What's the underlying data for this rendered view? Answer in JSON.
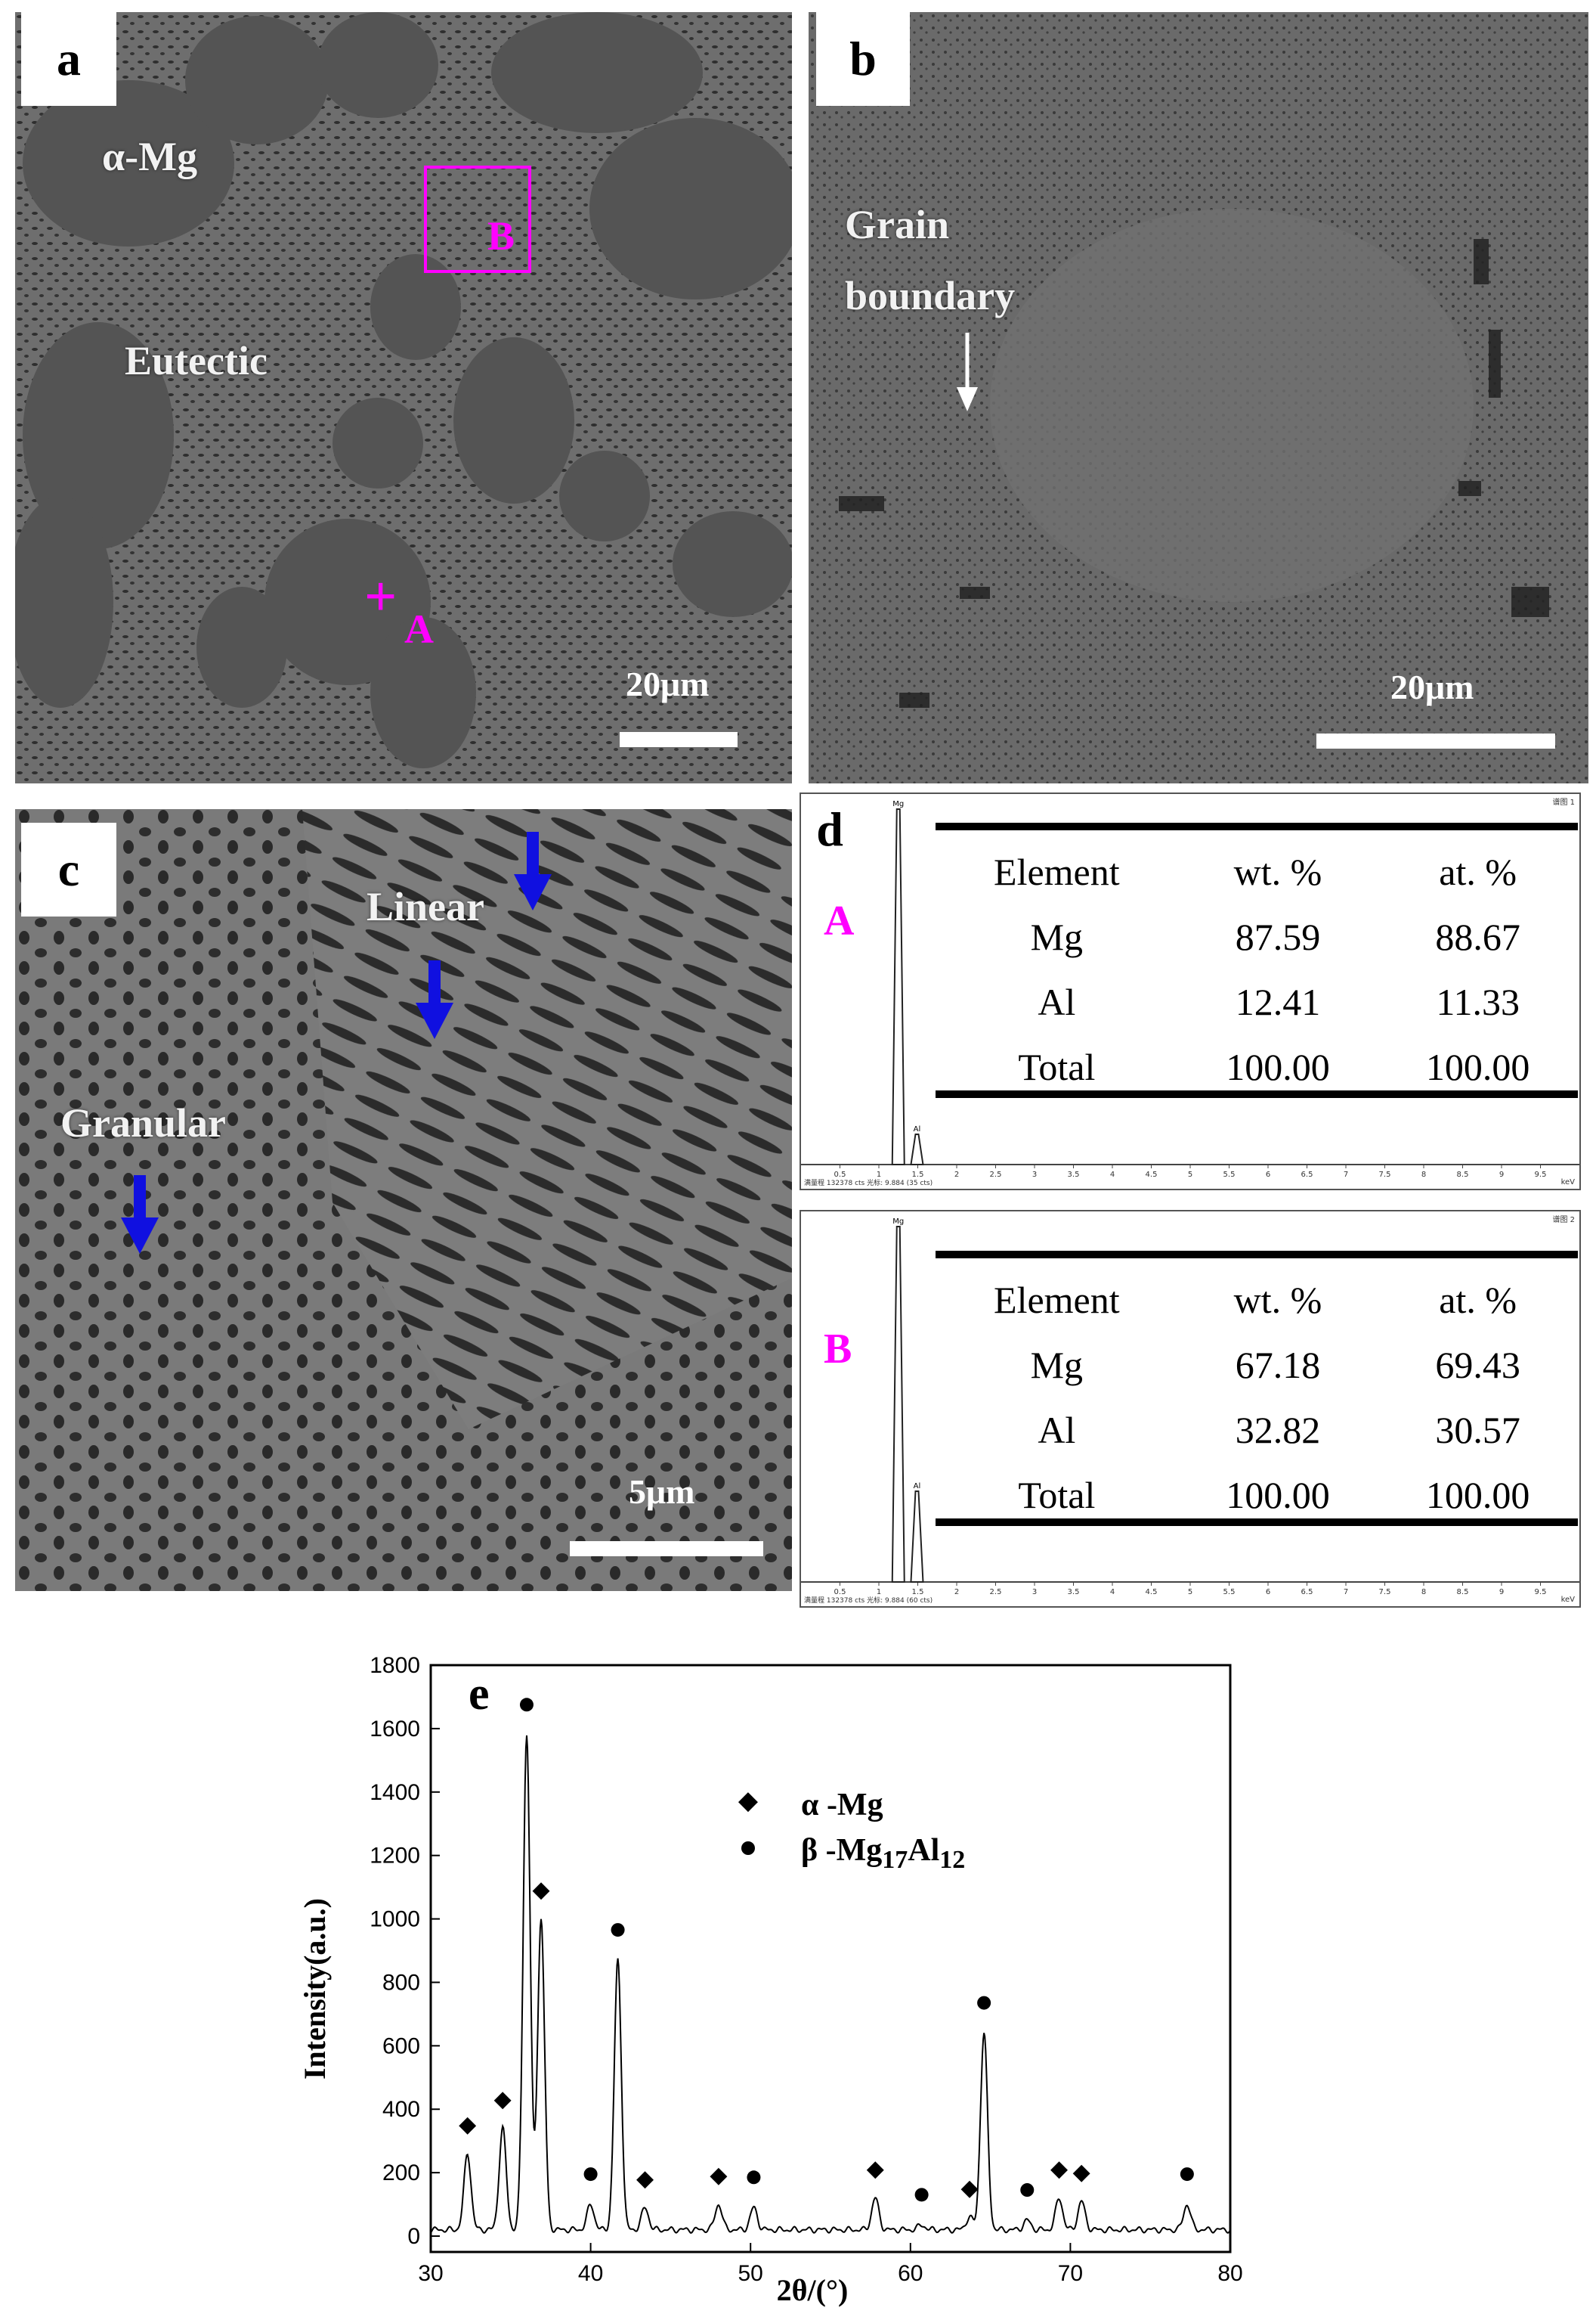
{
  "panels": {
    "a": {
      "label": "a",
      "annotations": {
        "alpha_mg": "α-Mg",
        "eutectic": "Eutectic",
        "point_a": "A",
        "box_b": "B"
      },
      "scale_bar": "20μm"
    },
    "b": {
      "label": "b",
      "annotations": {
        "grain": "Grain",
        "boundary": "boundary"
      },
      "scale_bar": "20μm"
    },
    "c": {
      "label": "c",
      "annotations": {
        "linear": "Linear",
        "granular": "Granular"
      },
      "scale_bar": "5μm"
    },
    "d": {
      "label": "d",
      "tables": [
        {
          "point": "A",
          "headers": [
            "Element",
            "wt. %",
            "at. %"
          ],
          "rows": [
            [
              "Mg",
              "87.59",
              "88.67"
            ],
            [
              "Al",
              "12.41",
              "11.33"
            ],
            [
              "Total",
              "100.00",
              "100.00"
            ]
          ],
          "corner": "谱图 1",
          "footer": "满量程 132378 cts 光标: 9.884 (35 cts)",
          "peaks": {
            "Mg": 1.25,
            "Al": 1.49
          }
        },
        {
          "point": "B",
          "headers": [
            "Element",
            "wt. %",
            "at. %"
          ],
          "rows": [
            [
              "Mg",
              "67.18",
              "69.43"
            ],
            [
              "Al",
              "32.82",
              "30.57"
            ],
            [
              "Total",
              "100.00",
              "100.00"
            ]
          ],
          "corner": "谱图 2",
          "footer": "满量程 132378 cts 光标: 9.884 (60 cts)",
          "peaks": {
            "Mg": 1.25,
            "Al": 1.49
          }
        }
      ],
      "x_ticks": [
        "0.5",
        "1",
        "1.5",
        "2",
        "2.5",
        "3",
        "3.5",
        "4",
        "4.5",
        "5",
        "5.5",
        "6",
        "6.5",
        "7",
        "7.5",
        "8",
        "8.5",
        "9",
        "9.5"
      ],
      "x_unit": "keV"
    },
    "e": {
      "label": "e"
    }
  },
  "chart_data": {
    "type": "line",
    "xlabel": "2θ/(°)",
    "ylabel": "Intensity(a.u.)",
    "xlim": [
      30,
      80
    ],
    "ylim": [
      -50,
      1800
    ],
    "x_ticks": [
      30,
      40,
      50,
      60,
      70,
      80
    ],
    "y_ticks": [
      0,
      200,
      400,
      600,
      800,
      1000,
      1200,
      1400,
      1600,
      1800
    ],
    "peaks": [
      {
        "x": 32.3,
        "y": 260,
        "phase": "alpha"
      },
      {
        "x": 34.5,
        "y": 340,
        "phase": "alpha"
      },
      {
        "x": 36.0,
        "y": 1580,
        "phase": "beta"
      },
      {
        "x": 36.9,
        "y": 1000,
        "phase": "alpha"
      },
      {
        "x": 40.0,
        "y": 100,
        "phase": "beta"
      },
      {
        "x": 41.7,
        "y": 870,
        "phase": "beta"
      },
      {
        "x": 43.4,
        "y": 90,
        "phase": "alpha"
      },
      {
        "x": 48.0,
        "y": 100,
        "phase": "alpha"
      },
      {
        "x": 50.2,
        "y": 90,
        "phase": "beta"
      },
      {
        "x": 57.8,
        "y": 120,
        "phase": "alpha"
      },
      {
        "x": 60.7,
        "y": 35,
        "phase": "beta"
      },
      {
        "x": 63.7,
        "y": 60,
        "phase": "alpha"
      },
      {
        "x": 64.6,
        "y": 640,
        "phase": "beta"
      },
      {
        "x": 67.3,
        "y": 50,
        "phase": "beta"
      },
      {
        "x": 69.3,
        "y": 120,
        "phase": "alpha"
      },
      {
        "x": 70.7,
        "y": 110,
        "phase": "alpha"
      },
      {
        "x": 77.3,
        "y": 100,
        "phase": "beta"
      }
    ],
    "baseline": 20,
    "legend": {
      "alpha": "α -Mg",
      "beta_prefix": "β -Mg",
      "beta_sub1": "17",
      "beta_mid": "Al",
      "beta_sub2": "12"
    },
    "legend_placement": "top-center"
  },
  "colors": {
    "magenta": "#ff00ff",
    "arrow_blue": "#1010e0"
  }
}
